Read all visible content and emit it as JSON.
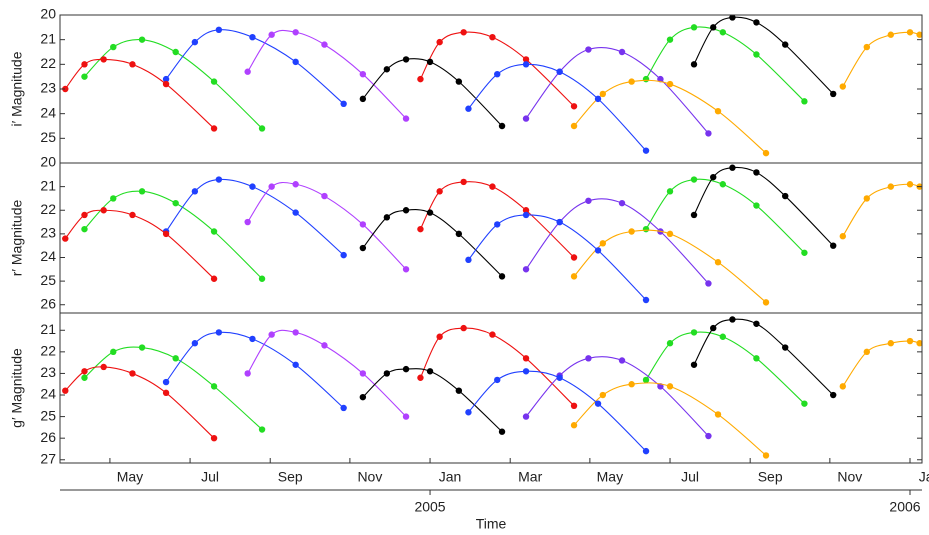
{
  "chart_data": [
    {
      "type": "line",
      "ylabel": "i′ Magnitude",
      "xlim": [
        2004.229,
        2006.025
      ],
      "ylim": [
        26,
        20
      ],
      "yticks": [
        20,
        21,
        22,
        23,
        24,
        25
      ],
      "series": [
        {
          "color": "#22dd22",
          "x": [
            2004.28,
            2004.34,
            2004.4,
            2004.47,
            2004.55,
            2004.65
          ],
          "values": [
            22.5,
            21.3,
            21.0,
            21.5,
            22.7,
            24.6
          ]
        },
        {
          "color": "#2040ff",
          "x": [
            2004.45,
            2004.51,
            2004.56,
            2004.63,
            2004.72,
            2004.82
          ],
          "values": [
            22.6,
            21.1,
            20.6,
            20.9,
            21.9,
            23.6
          ]
        },
        {
          "color": "#b040ff",
          "x": [
            2004.62,
            2004.67,
            2004.72,
            2004.78,
            2004.86,
            2004.95
          ],
          "values": [
            22.3,
            20.8,
            20.7,
            21.2,
            22.4,
            24.2
          ]
        },
        {
          "color": "#ee1111",
          "x": [
            2004.98,
            2005.02,
            2005.07,
            2005.13,
            2005.2,
            2005.3
          ],
          "values": [
            22.6,
            21.1,
            20.7,
            20.9,
            21.8,
            23.7
          ]
        },
        {
          "color": "#000000",
          "x": [
            2004.86,
            2004.91,
            2004.95,
            2005.0,
            2005.06,
            2005.15
          ],
          "values": [
            23.4,
            22.2,
            21.8,
            21.9,
            22.7,
            24.5
          ]
        },
        {
          "color": "#22dd22",
          "x": [
            2005.45,
            2005.5,
            2005.55,
            2005.61,
            2005.68,
            2005.78
          ],
          "values": [
            22.6,
            21.0,
            20.5,
            20.7,
            21.6,
            23.5
          ]
        },
        {
          "color": "#000000",
          "x": [
            2005.55,
            2005.59,
            2005.63,
            2005.68,
            2005.74,
            2005.84
          ],
          "values": [
            22.0,
            20.5,
            20.1,
            20.3,
            21.2,
            23.2
          ]
        },
        {
          "color": "#ffaa00",
          "x": [
            2005.86,
            2005.91,
            2005.96,
            2006.0,
            2006.02
          ],
          "values": [
            22.9,
            21.3,
            20.8,
            20.7,
            20.8
          ]
        },
        {
          "color": "#ee1111",
          "x": [
            2004.24,
            2004.28,
            2004.32,
            2004.38,
            2004.45,
            2004.55
          ],
          "values": [
            23.0,
            22.0,
            21.8,
            22.0,
            22.8,
            24.6
          ]
        },
        {
          "color": "#7733ee",
          "x": [
            2005.2,
            2005.27,
            2005.33,
            2005.4,
            2005.48,
            2005.58
          ],
          "values": [
            24.2,
            22.3,
            21.4,
            21.5,
            22.6,
            24.8
          ]
        },
        {
          "color": "#ffaa00",
          "x": [
            2005.3,
            2005.36,
            2005.42,
            2005.5,
            2005.6,
            2005.7
          ],
          "values": [
            24.5,
            23.2,
            22.7,
            22.8,
            23.9,
            25.6
          ]
        },
        {
          "color": "#2040ff",
          "x": [
            2005.08,
            2005.14,
            2005.2,
            2005.27,
            2005.35,
            2005.45
          ],
          "values": [
            23.8,
            22.4,
            22.0,
            22.3,
            23.4,
            25.5
          ]
        }
      ]
    },
    {
      "type": "line",
      "ylabel": "r′ Magnitude",
      "xlim": [
        2004.229,
        2006.025
      ],
      "ylim": [
        26.35,
        20
      ],
      "yticks": [
        20,
        21,
        22,
        23,
        24,
        25,
        26
      ],
      "series": [
        {
          "color": "#22dd22",
          "x": [
            2004.28,
            2004.34,
            2004.4,
            2004.47,
            2004.55,
            2004.65
          ],
          "values": [
            22.8,
            21.5,
            21.2,
            21.7,
            22.9,
            24.9
          ]
        },
        {
          "color": "#2040ff",
          "x": [
            2004.45,
            2004.51,
            2004.56,
            2004.63,
            2004.72,
            2004.82
          ],
          "values": [
            22.9,
            21.2,
            20.7,
            21.0,
            22.1,
            23.9
          ]
        },
        {
          "color": "#b040ff",
          "x": [
            2004.62,
            2004.67,
            2004.72,
            2004.78,
            2004.86,
            2004.95
          ],
          "values": [
            22.5,
            21.0,
            20.9,
            21.4,
            22.6,
            24.5
          ]
        },
        {
          "color": "#ee1111",
          "x": [
            2004.98,
            2005.02,
            2005.07,
            2005.13,
            2005.2,
            2005.3
          ],
          "values": [
            22.8,
            21.2,
            20.8,
            21.0,
            22.0,
            24.0
          ]
        },
        {
          "color": "#000000",
          "x": [
            2004.86,
            2004.91,
            2004.95,
            2005.0,
            2005.06,
            2005.15
          ],
          "values": [
            23.6,
            22.3,
            22.0,
            22.1,
            23.0,
            24.8
          ]
        },
        {
          "color": "#22dd22",
          "x": [
            2005.45,
            2005.5,
            2005.55,
            2005.61,
            2005.68,
            2005.78
          ],
          "values": [
            22.8,
            21.2,
            20.7,
            20.9,
            21.8,
            23.8
          ]
        },
        {
          "color": "#000000",
          "x": [
            2005.55,
            2005.59,
            2005.63,
            2005.68,
            2005.74,
            2005.84
          ],
          "values": [
            22.2,
            20.6,
            20.2,
            20.4,
            21.4,
            23.5
          ]
        },
        {
          "color": "#ffaa00",
          "x": [
            2005.86,
            2005.91,
            2005.96,
            2006.0,
            2006.02
          ],
          "values": [
            23.1,
            21.5,
            21.0,
            20.9,
            21.0
          ]
        },
        {
          "color": "#ee1111",
          "x": [
            2004.24,
            2004.28,
            2004.32,
            2004.38,
            2004.45,
            2004.55
          ],
          "values": [
            23.2,
            22.2,
            22.0,
            22.2,
            23.0,
            24.9
          ]
        },
        {
          "color": "#7733ee",
          "x": [
            2005.2,
            2005.27,
            2005.33,
            2005.4,
            2005.48,
            2005.58
          ],
          "values": [
            24.5,
            22.5,
            21.6,
            21.7,
            22.9,
            25.1
          ]
        },
        {
          "color": "#ffaa00",
          "x": [
            2005.3,
            2005.36,
            2005.42,
            2005.5,
            2005.6,
            2005.7
          ],
          "values": [
            24.8,
            23.4,
            22.9,
            23.0,
            24.2,
            25.9
          ]
        },
        {
          "color": "#2040ff",
          "x": [
            2005.08,
            2005.14,
            2005.2,
            2005.27,
            2005.35,
            2005.45
          ],
          "values": [
            24.1,
            22.6,
            22.2,
            22.5,
            23.7,
            25.8
          ]
        }
      ]
    },
    {
      "type": "line",
      "ylabel": "g′ Magnitude",
      "xlabel": "Time",
      "xlim": [
        2004.229,
        2006.025
      ],
      "ylim": [
        27.15,
        20.2
      ],
      "yticks": [
        21,
        22,
        23,
        24,
        25,
        26,
        27
      ],
      "xticks": [
        {
          "value": 2004.333,
          "label": "May"
        },
        {
          "value": 2004.5,
          "label": "Jul"
        },
        {
          "value": 2004.667,
          "label": "Sep"
        },
        {
          "value": 2004.833,
          "label": "Nov"
        },
        {
          "value": 2005.0,
          "label": "Jan"
        },
        {
          "value": 2005.167,
          "label": "Mar"
        },
        {
          "value": 2005.333,
          "label": "May"
        },
        {
          "value": 2005.5,
          "label": "Jul"
        },
        {
          "value": 2005.667,
          "label": "Sep"
        },
        {
          "value": 2005.833,
          "label": "Nov"
        },
        {
          "value": 2006.0,
          "label": "Jan"
        }
      ],
      "year_ticks": [
        2005,
        2006
      ],
      "series": [
        {
          "color": "#22dd22",
          "x": [
            2004.28,
            2004.34,
            2004.4,
            2004.47,
            2004.55,
            2004.65
          ],
          "values": [
            23.2,
            22.0,
            21.8,
            22.3,
            23.6,
            25.6
          ]
        },
        {
          "color": "#2040ff",
          "x": [
            2004.45,
            2004.51,
            2004.56,
            2004.63,
            2004.72,
            2004.82
          ],
          "values": [
            23.4,
            21.6,
            21.1,
            21.4,
            22.6,
            24.6
          ]
        },
        {
          "color": "#b040ff",
          "x": [
            2004.62,
            2004.67,
            2004.72,
            2004.78,
            2004.86,
            2004.95
          ],
          "values": [
            23.0,
            21.2,
            21.1,
            21.7,
            23.0,
            25.0
          ]
        },
        {
          "color": "#ee1111",
          "x": [
            2004.98,
            2005.02,
            2005.07,
            2005.13,
            2005.2,
            2005.3
          ],
          "values": [
            23.2,
            21.3,
            20.9,
            21.2,
            22.3,
            24.5
          ]
        },
        {
          "color": "#000000",
          "x": [
            2004.86,
            2004.91,
            2004.95,
            2005.0,
            2005.06,
            2005.15
          ],
          "values": [
            24.1,
            23.0,
            22.8,
            22.9,
            23.8,
            25.7
          ]
        },
        {
          "color": "#22dd22",
          "x": [
            2005.45,
            2005.5,
            2005.55,
            2005.61,
            2005.68,
            2005.78
          ],
          "values": [
            23.3,
            21.6,
            21.1,
            21.3,
            22.3,
            24.4
          ]
        },
        {
          "color": "#000000",
          "x": [
            2005.55,
            2005.59,
            2005.63,
            2005.68,
            2005.74,
            2005.84
          ],
          "values": [
            22.6,
            20.9,
            20.5,
            20.7,
            21.8,
            24.0
          ]
        },
        {
          "color": "#ffaa00",
          "x": [
            2005.86,
            2005.91,
            2005.96,
            2006.0,
            2006.02
          ],
          "values": [
            23.6,
            22.0,
            21.6,
            21.5,
            21.6
          ]
        },
        {
          "color": "#ee1111",
          "x": [
            2004.24,
            2004.28,
            2004.32,
            2004.38,
            2004.45,
            2004.55
          ],
          "values": [
            23.8,
            22.9,
            22.7,
            23.0,
            23.9,
            26.0
          ]
        },
        {
          "color": "#7733ee",
          "x": [
            2005.2,
            2005.27,
            2005.33,
            2005.4,
            2005.48,
            2005.58
          ],
          "values": [
            25.0,
            23.1,
            22.3,
            22.4,
            23.6,
            25.9
          ]
        },
        {
          "color": "#ffaa00",
          "x": [
            2005.3,
            2005.36,
            2005.42,
            2005.5,
            2005.6,
            2005.7
          ],
          "values": [
            25.4,
            24.0,
            23.5,
            23.6,
            24.9,
            26.8
          ]
        },
        {
          "color": "#2040ff",
          "x": [
            2005.08,
            2005.14,
            2005.2,
            2005.27,
            2005.35,
            2005.45
          ],
          "values": [
            24.8,
            23.3,
            22.9,
            23.2,
            24.4,
            26.6
          ]
        }
      ]
    }
  ]
}
